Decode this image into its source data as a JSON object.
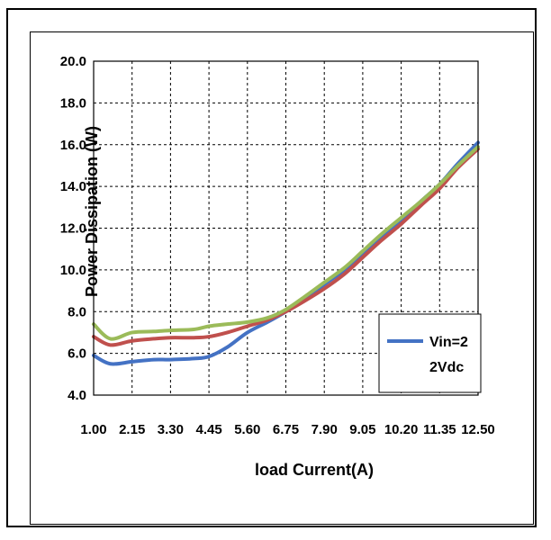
{
  "chart_data": {
    "type": "line",
    "xlabel": "load Current(A)",
    "ylabel": "Power Dissipation (W)",
    "x": [
      1.0,
      2.15,
      3.3,
      4.45,
      5.6,
      6.75,
      7.9,
      9.05,
      10.2,
      11.35,
      12.5
    ],
    "x_tick_labels": [
      "1.00",
      "2.15",
      "3.30",
      "4.45",
      "5.60",
      "6.75",
      "7.90",
      "9.05",
      "10.20",
      "11.35",
      "12.50"
    ],
    "ylim": [
      4.0,
      20.0
    ],
    "y_ticks": [
      "4.0",
      "6.0",
      "8.0",
      "10.0",
      "12.0",
      "14.0",
      "16.0",
      "18.0",
      "20.0"
    ],
    "grid": true,
    "legend": {
      "position": "bottom-right",
      "entries": [
        "Vin=2",
        "2Vdc"
      ]
    },
    "series": [
      {
        "name": "Vin=22Vdc",
        "color": "#4472C4",
        "points": [
          [
            1.0,
            5.9
          ],
          [
            1.5,
            5.5
          ],
          [
            2.15,
            5.6
          ],
          [
            2.8,
            5.7
          ],
          [
            3.3,
            5.7
          ],
          [
            4.0,
            5.75
          ],
          [
            4.45,
            5.85
          ],
          [
            5.0,
            6.3
          ],
          [
            5.6,
            7.0
          ],
          [
            6.2,
            7.5
          ],
          [
            6.75,
            8.0
          ],
          [
            7.3,
            8.6
          ],
          [
            7.9,
            9.3
          ],
          [
            8.5,
            10.0
          ],
          [
            9.05,
            10.8
          ],
          [
            9.6,
            11.6
          ],
          [
            10.2,
            12.4
          ],
          [
            10.8,
            13.3
          ],
          [
            11.35,
            14.1
          ],
          [
            11.9,
            15.1
          ],
          [
            12.5,
            16.1
          ]
        ]
      },
      {
        "name": "",
        "color": "#C0504D",
        "points": [
          [
            1.0,
            6.8
          ],
          [
            1.5,
            6.4
          ],
          [
            2.15,
            6.6
          ],
          [
            2.8,
            6.7
          ],
          [
            3.3,
            6.75
          ],
          [
            4.0,
            6.75
          ],
          [
            4.45,
            6.8
          ],
          [
            5.0,
            7.0
          ],
          [
            5.6,
            7.3
          ],
          [
            6.2,
            7.6
          ],
          [
            6.75,
            8.0
          ],
          [
            7.3,
            8.5
          ],
          [
            7.9,
            9.1
          ],
          [
            8.5,
            9.8
          ],
          [
            9.05,
            10.6
          ],
          [
            9.6,
            11.4
          ],
          [
            10.2,
            12.2
          ],
          [
            10.8,
            13.1
          ],
          [
            11.35,
            13.9
          ],
          [
            11.9,
            14.9
          ],
          [
            12.5,
            15.8
          ]
        ]
      },
      {
        "name": "",
        "color": "#9BBB59",
        "points": [
          [
            1.0,
            7.4
          ],
          [
            1.5,
            6.7
          ],
          [
            2.15,
            7.0
          ],
          [
            2.8,
            7.05
          ],
          [
            3.3,
            7.1
          ],
          [
            4.0,
            7.15
          ],
          [
            4.45,
            7.3
          ],
          [
            5.0,
            7.4
          ],
          [
            5.6,
            7.5
          ],
          [
            6.2,
            7.7
          ],
          [
            6.75,
            8.1
          ],
          [
            7.3,
            8.7
          ],
          [
            7.9,
            9.4
          ],
          [
            8.5,
            10.1
          ],
          [
            9.05,
            10.9
          ],
          [
            9.6,
            11.7
          ],
          [
            10.2,
            12.5
          ],
          [
            10.8,
            13.3
          ],
          [
            11.35,
            14.1
          ],
          [
            11.9,
            15.0
          ],
          [
            12.5,
            15.9
          ]
        ]
      }
    ]
  }
}
